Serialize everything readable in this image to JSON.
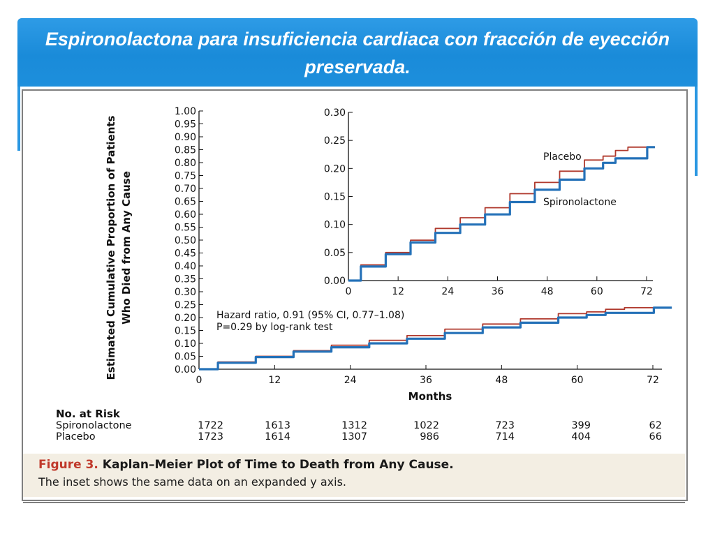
{
  "slide": {
    "title": "Espironolactona para insuficiencia cardiaca con fracción de eyección preservada."
  },
  "colors": {
    "placebo": "#b03a2e",
    "spironolactone": "#2471b8",
    "banner": "#1a8bd9",
    "figure_label": "#c0392b"
  },
  "chart_data": [
    {
      "type": "line",
      "role": "main",
      "ylabel_line1": "Estimated Cumulative Proportion of Patients",
      "ylabel_line2": "Who Died from Any Cause",
      "xlabel": "Months",
      "xlim": [
        0,
        72
      ],
      "ylim": [
        0,
        1.0
      ],
      "x_ticks": [
        "0",
        "12",
        "24",
        "36",
        "48",
        "60",
        "72"
      ],
      "y_ticks": [
        "0.00",
        "0.05",
        "0.10",
        "0.15",
        "0.20",
        "0.25",
        "0.30",
        "0.35",
        "0.40",
        "0.45",
        "0.50",
        "0.55",
        "0.60",
        "0.65",
        "0.70",
        "0.75",
        "0.80",
        "0.85",
        "0.90",
        "0.95",
        "1.00"
      ],
      "annotation_line1": "Hazard ratio, 0.91 (95% CI, 0.77–1.08)",
      "annotation_line2": "P=0.29 by log-rank test",
      "series": [
        {
          "name": "Placebo",
          "x": [
            0,
            6,
            12,
            18,
            24,
            30,
            36,
            42,
            48,
            54,
            60,
            63,
            66,
            69,
            72,
            75
          ],
          "values": [
            0,
            0.028,
            0.05,
            0.072,
            0.093,
            0.112,
            0.13,
            0.155,
            0.175,
            0.195,
            0.215,
            0.222,
            0.232,
            0.238,
            0.238,
            0.238
          ]
        },
        {
          "name": "Spironolactone",
          "x": [
            0,
            6,
            12,
            18,
            24,
            30,
            36,
            42,
            48,
            54,
            60,
            63,
            66,
            69,
            72,
            72.3,
            75
          ],
          "values": [
            0,
            0.025,
            0.047,
            0.068,
            0.085,
            0.1,
            0.118,
            0.14,
            0.162,
            0.18,
            0.2,
            0.21,
            0.218,
            0.218,
            0.218,
            0.238,
            0.238
          ]
        }
      ]
    },
    {
      "type": "line",
      "role": "inset",
      "xlim": [
        0,
        72
      ],
      "ylim": [
        0,
        0.3
      ],
      "x_ticks": [
        "0",
        "12",
        "24",
        "36",
        "48",
        "60",
        "72"
      ],
      "y_ticks": [
        "0.00",
        "0.05",
        "0.10",
        "0.15",
        "0.20",
        "0.25",
        "0.30"
      ],
      "series": [
        {
          "name": "Placebo",
          "label": "Placebo",
          "x": [
            0,
            6,
            12,
            18,
            24,
            30,
            36,
            42,
            48,
            54,
            60,
            63,
            66,
            69,
            72,
            74
          ],
          "values": [
            0,
            0.028,
            0.05,
            0.072,
            0.093,
            0.112,
            0.13,
            0.155,
            0.175,
            0.195,
            0.215,
            0.222,
            0.232,
            0.238,
            0.238,
            0.238
          ]
        },
        {
          "name": "Spironolactone",
          "label": "Spironolactone",
          "x": [
            0,
            6,
            12,
            18,
            24,
            30,
            36,
            42,
            48,
            54,
            60,
            63,
            66,
            69,
            72,
            72.3,
            74
          ],
          "values": [
            0,
            0.025,
            0.047,
            0.068,
            0.085,
            0.1,
            0.118,
            0.14,
            0.162,
            0.18,
            0.2,
            0.21,
            0.218,
            0.218,
            0.218,
            0.238,
            0.238
          ]
        }
      ]
    }
  ],
  "risk_table": {
    "heading": "No. at Risk",
    "rows": [
      {
        "group": "Spironolactone",
        "values": [
          "1722",
          "1613",
          "1312",
          "1022",
          "723",
          "399",
          "62"
        ]
      },
      {
        "group": "Placebo",
        "values": [
          "1723",
          "1614",
          "1307",
          "986",
          "714",
          "404",
          "66"
        ]
      }
    ]
  },
  "caption": {
    "figure_label": "Figure 3.",
    "title": "Kaplan–Meier Plot of Time to Death from Any Cause.",
    "text": "The inset shows the same data on an expanded y axis."
  }
}
